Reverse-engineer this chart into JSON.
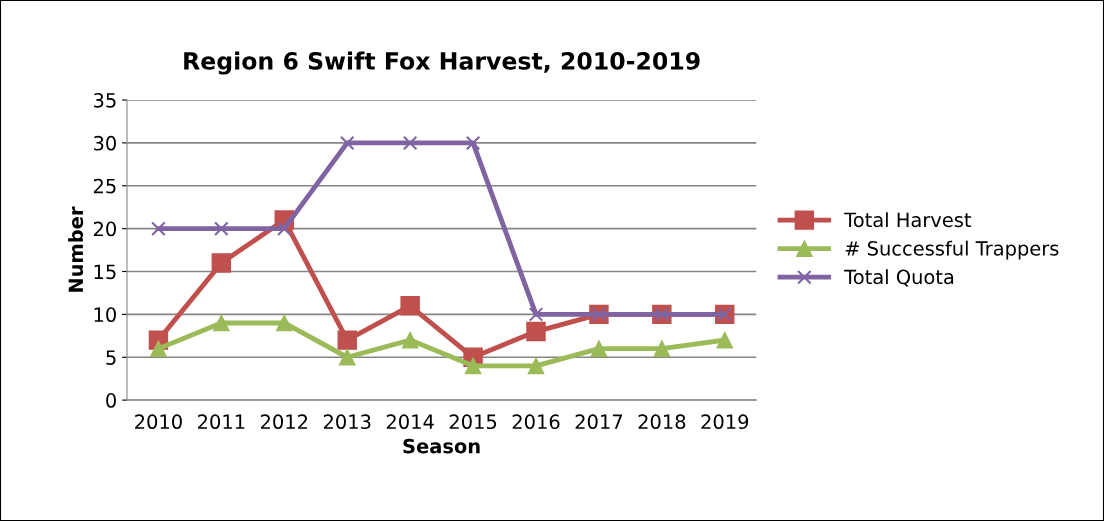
{
  "chart_data": {
    "type": "line",
    "title": "Region 6 Swift Fox Harvest, 2010-2019",
    "xlabel": "Season",
    "ylabel": "Number",
    "categories": [
      "2010",
      "2011",
      "2012",
      "2013",
      "2014",
      "2015",
      "2016",
      "2017",
      "2018",
      "2019"
    ],
    "series": [
      {
        "name": "Total Harvest",
        "color": "#c0504d",
        "marker": "square",
        "values": [
          7,
          16,
          21,
          7,
          11,
          5,
          8,
          10,
          10,
          10
        ]
      },
      {
        "name": "# Successful Trappers",
        "color": "#9bbb59",
        "marker": "triangle",
        "values": [
          6,
          9,
          9,
          5,
          7,
          4,
          4,
          6,
          6,
          7
        ]
      },
      {
        "name": "Total Quota",
        "color": "#8064a2",
        "marker": "cross",
        "values": [
          20,
          20,
          20,
          30,
          30,
          30,
          10,
          10,
          10,
          10
        ]
      }
    ],
    "ylim": [
      0,
      35
    ],
    "yticks": [
      0,
      5,
      10,
      15,
      20,
      25,
      30,
      35
    ],
    "grid": "y",
    "legend": "right",
    "line_style": "solid"
  }
}
